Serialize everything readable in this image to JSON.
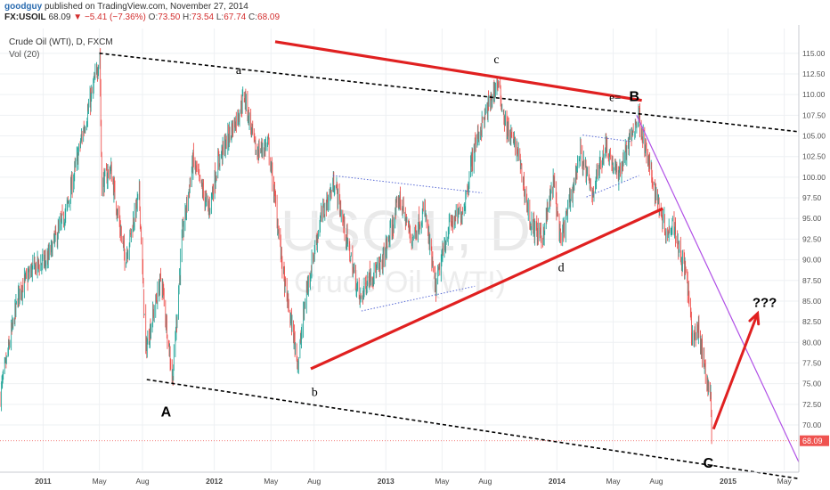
{
  "header": {
    "author": "goodguy",
    "published": "published on TradingView.com, November 27, 2014",
    "symbol": "FX:USOIL",
    "last": "68.09",
    "change": "−5.41 (−7.36%)",
    "o_label": "O:",
    "o_val": "73.50",
    "h_label": "H:",
    "h_val": "73.54",
    "l_label": "L:",
    "l_val": "67.74",
    "c_label": "C:",
    "c_val": "68.09"
  },
  "chart_data": {
    "type": "candlestick",
    "title": "Crude Oil (WTI), D, FXCM",
    "indicator": "Vol (20)",
    "watermark_symbol": "USOIL, D",
    "watermark_name": "Crude Oil (WTI)",
    "xlim": [
      "2010-10-01",
      "2015-06-01"
    ],
    "ylim": [
      64.5,
      118
    ],
    "y_ticks": [
      "70.00",
      "72.50",
      "75.00",
      "77.50",
      "80.00",
      "82.50",
      "85.00",
      "87.50",
      "90.00",
      "92.50",
      "95.00",
      "97.50",
      "100.00",
      "102.50",
      "105.00",
      "107.50",
      "110.00",
      "112.50",
      "115.00"
    ],
    "x_ticks": [
      {
        "t": "2011-01-01",
        "label": "2011",
        "bold": true
      },
      {
        "t": "2011-05-01",
        "label": "May",
        "bold": false
      },
      {
        "t": "2011-08-01",
        "label": "Aug",
        "bold": false
      },
      {
        "t": "2012-01-01",
        "label": "2012",
        "bold": true
      },
      {
        "t": "2012-05-01",
        "label": "May",
        "bold": false
      },
      {
        "t": "2012-08-01",
        "label": "Aug",
        "bold": false
      },
      {
        "t": "2013-01-01",
        "label": "2013",
        "bold": true
      },
      {
        "t": "2013-05-01",
        "label": "May",
        "bold": false
      },
      {
        "t": "2013-08-01",
        "label": "Aug",
        "bold": false
      },
      {
        "t": "2014-01-01",
        "label": "2014",
        "bold": true
      },
      {
        "t": "2014-05-01",
        "label": "May",
        "bold": false
      },
      {
        "t": "2014-08-01",
        "label": "Aug",
        "bold": false
      },
      {
        "t": "2015-01-01",
        "label": "2015",
        "bold": true
      },
      {
        "t": "2015-05-01",
        "label": "May",
        "bold": false
      }
    ],
    "price_anchors": [
      [
        "2010-10-01",
        73.5
      ],
      [
        "2010-11-10",
        86
      ],
      [
        "2010-12-10",
        89
      ],
      [
        "2011-01-10",
        90
      ],
      [
        "2011-02-20",
        96
      ],
      [
        "2011-03-25",
        105
      ],
      [
        "2011-04-15",
        110
      ],
      [
        "2011-05-02",
        114.8
      ],
      [
        "2011-05-06",
        99
      ],
      [
        "2011-05-25",
        101
      ],
      [
        "2011-06-25",
        90
      ],
      [
        "2011-07-25",
        98
      ],
      [
        "2011-08-08",
        79
      ],
      [
        "2011-09-10",
        88
      ],
      [
        "2011-10-04",
        75.5
      ],
      [
        "2011-10-25",
        93
      ],
      [
        "2011-11-17",
        102
      ],
      [
        "2011-12-20",
        96
      ],
      [
        "2012-01-10",
        102
      ],
      [
        "2012-02-24",
        108
      ],
      [
        "2012-03-05",
        110
      ],
      [
        "2012-03-30",
        103
      ],
      [
        "2012-04-25",
        104
      ],
      [
        "2012-05-10",
        97
      ],
      [
        "2012-05-30",
        87
      ],
      [
        "2012-06-28",
        77.5
      ],
      [
        "2012-07-15",
        86
      ],
      [
        "2012-08-15",
        95
      ],
      [
        "2012-09-14",
        99.5
      ],
      [
        "2012-10-15",
        91
      ],
      [
        "2012-11-07",
        85
      ],
      [
        "2012-11-25",
        88
      ],
      [
        "2012-12-20",
        89
      ],
      [
        "2013-01-15",
        94
      ],
      [
        "2013-01-30",
        97.5
      ],
      [
        "2013-02-25",
        92.5
      ],
      [
        "2013-03-25",
        96
      ],
      [
        "2013-04-17",
        86.5
      ],
      [
        "2013-05-15",
        94
      ],
      [
        "2013-06-15",
        96
      ],
      [
        "2013-07-10",
        104
      ],
      [
        "2013-08-27",
        111.5
      ],
      [
        "2013-09-15",
        106
      ],
      [
        "2013-10-10",
        103
      ],
      [
        "2013-11-05",
        94.5
      ],
      [
        "2013-11-30",
        92.5
      ],
      [
        "2013-12-25",
        99.5
      ],
      [
        "2014-01-09",
        92
      ],
      [
        "2014-01-30",
        97.5
      ],
      [
        "2014-02-20",
        103
      ],
      [
        "2014-03-17",
        98
      ],
      [
        "2014-04-15",
        104
      ],
      [
        "2014-05-10",
        100
      ],
      [
        "2014-06-15",
        106
      ],
      [
        "2014-06-25",
        107.5
      ],
      [
        "2014-07-10",
        103
      ],
      [
        "2014-07-31",
        98
      ],
      [
        "2014-08-25",
        93
      ],
      [
        "2014-09-05",
        95
      ],
      [
        "2014-09-20",
        91
      ],
      [
        "2014-10-05",
        88
      ],
      [
        "2014-10-16",
        80.5
      ],
      [
        "2014-10-30",
        81.5
      ],
      [
        "2014-11-10",
        77.5
      ],
      [
        "2014-11-25",
        73.5
      ],
      [
        "2014-11-27",
        68.09
      ]
    ],
    "current_price": 68.09,
    "lines": [
      {
        "name": "upper-channel",
        "style": "dashed",
        "color": "#000000",
        "from": [
          "2011-05-01",
          115.0
        ],
        "to": [
          "2015-06-01",
          105.5
        ]
      },
      {
        "name": "lower-channel",
        "style": "dashed",
        "color": "#000000",
        "from": [
          "2011-08-10",
          75.5
        ],
        "to": [
          "2015-06-01",
          63.5
        ]
      },
      {
        "name": "red-resistance",
        "style": "solid",
        "color": "#e02020",
        "from": [
          "2012-05-10",
          116.4
        ],
        "to": [
          "2014-07-01",
          109.3
        ]
      },
      {
        "name": "red-support",
        "style": "solid",
        "color": "#e02020",
        "from": [
          "2012-07-25",
          76.8
        ],
        "to": [
          "2014-08-15",
          96.2
        ]
      },
      {
        "name": "purple-down",
        "style": "solid",
        "color": "#b04fe6",
        "from": [
          "2014-06-20",
          107.5
        ],
        "to": [
          "2015-06-01",
          65.5
        ]
      },
      {
        "name": "triangle-upper",
        "style": "dotted",
        "color": "#5a6cd6",
        "from": [
          "2012-09-10",
          100.2
        ],
        "to": [
          "2013-07-25",
          98.1
        ]
      },
      {
        "name": "triangle-lower",
        "style": "dotted",
        "color": "#5a6cd6",
        "from": [
          "2012-11-10",
          83.8
        ],
        "to": [
          "2013-07-10",
          86.8
        ]
      },
      {
        "name": "flag-upper",
        "style": "dotted",
        "color": "#5a6cd6",
        "from": [
          "2014-02-25",
          105.1
        ],
        "to": [
          "2014-06-10",
          104.3
        ]
      },
      {
        "name": "flag-lower",
        "style": "dotted",
        "color": "#5a6cd6",
        "from": [
          "2014-03-05",
          97.6
        ],
        "to": [
          "2014-06-25",
          100.2
        ]
      }
    ],
    "arrow": {
      "name": "projection-arrow",
      "color": "#e02020",
      "from": [
        "2014-12-01",
        69.5
      ],
      "to": [
        "2015-03-05",
        83.5
      ]
    },
    "annotations": [
      {
        "text": "a",
        "t": "2012-02-22",
        "y": 112.5,
        "bold": false,
        "size": 14
      },
      {
        "text": "b",
        "t": "2012-08-02",
        "y": 73.5,
        "bold": false,
        "size": 14
      },
      {
        "text": "c",
        "t": "2013-08-25",
        "y": 113.8,
        "bold": false,
        "size": 14
      },
      {
        "text": "d",
        "t": "2014-01-10",
        "y": 88.6,
        "bold": false,
        "size": 14
      },
      {
        "text": "e=",
        "t": "2014-05-05",
        "y": 109.2,
        "bold": false,
        "size": 13
      },
      {
        "text": "B",
        "t": "2014-06-15",
        "y": 109.2,
        "bold": true,
        "size": 16
      },
      {
        "text": "A",
        "t": "2011-09-20",
        "y": 71.0,
        "bold": true,
        "size": 16
      },
      {
        "text": "C",
        "t": "2014-11-20",
        "y": 64.8,
        "bold": true,
        "size": 16
      },
      {
        "text": "???",
        "t": "2015-03-20",
        "y": 84.3,
        "bold": true,
        "size": 15
      }
    ],
    "colors": {
      "up": "#26a69a",
      "down": "#ef5350",
      "grid": "#eef0f3",
      "axis_text": "#555555",
      "price_tag": "#ef5350",
      "price_line": "#ef5350"
    }
  }
}
